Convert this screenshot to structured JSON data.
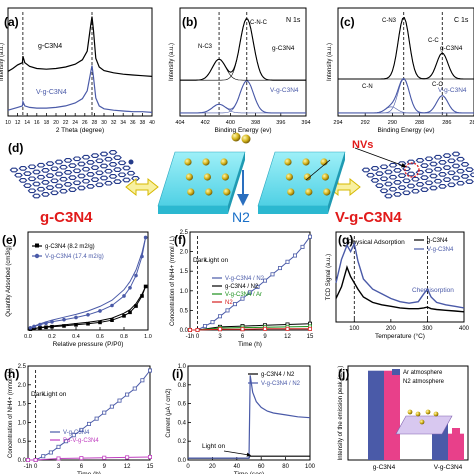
{
  "chart_data": [
    {
      "panel": "(a)",
      "type": "line",
      "xlabel": "2 Theta (degree)",
      "ylabel": "Intensity (a.u.)",
      "xlim": [
        10,
        40
      ],
      "xticks": [
        "10",
        "12",
        "14",
        "16",
        "18",
        "20",
        "22",
        "24",
        "26",
        "28",
        "30",
        "32",
        "34",
        "36",
        "38",
        "40"
      ],
      "series": [
        {
          "name": "g-C3N4",
          "color": "#000000",
          "x": [
            10,
            11,
            12,
            13,
            13.1,
            13.5,
            14.5,
            16,
            18,
            20,
            22,
            24,
            25.5,
            26.5,
            27.2,
            27.5,
            27.8,
            28.3,
            29,
            30,
            32,
            34,
            36,
            38,
            40
          ],
          "y": [
            0.62,
            0.66,
            0.71,
            0.74,
            0.83,
            0.74,
            0.69,
            0.66,
            0.65,
            0.66,
            0.68,
            0.72,
            0.78,
            0.9,
            1.25,
            1.38,
            1.2,
            0.8,
            0.68,
            0.63,
            0.6,
            0.58,
            0.57,
            0.56,
            0.55
          ]
        },
        {
          "name": "V-g-C3N4",
          "color": "#4a5aa8",
          "x": [
            10,
            11,
            12,
            13,
            13.1,
            13.5,
            14.5,
            16,
            18,
            20,
            22,
            24,
            25.5,
            26.5,
            27.2,
            27.5,
            27.8,
            28.3,
            29,
            30,
            32,
            34,
            36,
            38,
            40
          ],
          "y": [
            0.08,
            0.1,
            0.12,
            0.14,
            0.2,
            0.14,
            0.12,
            0.11,
            0.11,
            0.12,
            0.14,
            0.18,
            0.24,
            0.35,
            0.6,
            0.7,
            0.55,
            0.25,
            0.14,
            0.1,
            0.08,
            0.07,
            0.06,
            0.06,
            0.05
          ]
        }
      ],
      "ref_x": [
        13.1,
        27.5
      ]
    },
    {
      "panel": "(b)",
      "title": "N 1s",
      "type": "line",
      "xlabel": "Binding Energy (ev)",
      "ylabel": "Intensity (a.u.)",
      "xlim": [
        404,
        394
      ],
      "xticks": [
        "404",
        "402",
        "400",
        "398",
        "396",
        "394"
      ],
      "peak_labels": [
        "C-N-C",
        "N-C3"
      ],
      "series": [
        {
          "name": "g-C3N4",
          "color": "#000000",
          "centers": [
            398.7,
            400.9
          ],
          "heights": [
            1.0,
            0.34
          ],
          "width": 0.75,
          "offset": 0.58
        },
        {
          "name": "V-g-C3N4",
          "color": "#4a5aa8",
          "centers": [
            398.7,
            400.9
          ],
          "heights": [
            0.52,
            0.14
          ],
          "width": 0.75,
          "offset": 0.05
        }
      ],
      "ref_x": [
        400.9,
        398.7
      ]
    },
    {
      "panel": "(c)",
      "title": "C 1s",
      "type": "line",
      "xlabel": "Binding Energy (ev)",
      "ylabel": "Intensity (a.u.)",
      "xlim": [
        294,
        282
      ],
      "xticks": [
        "294",
        "292",
        "290",
        "288",
        "286",
        "284"
      ],
      "peak_labels": [
        "C-N3",
        "C-C",
        "C-N",
        "C-C"
      ],
      "series": [
        {
          "name": "g-C3N4",
          "color": "#000000",
          "centers": [
            288.2,
            284.8
          ],
          "heights": [
            1.0,
            0.42
          ],
          "width": 0.7,
          "offset": 0.6
        },
        {
          "name": "V-g-C3N4",
          "color": "#4a5aa8",
          "centers": [
            288.2,
            284.8,
            289.3
          ],
          "heights": [
            0.55,
            0.28,
            0.1
          ],
          "width": 0.7,
          "offset": 0.05
        }
      ],
      "ref_x": [
        288.2,
        284.8
      ]
    },
    {
      "panel": "(e)",
      "type": "line",
      "xlabel": "Relative pressure (P/P0)",
      "ylabel": "Quantity Adsorbed (cm3/g)",
      "xlim": [
        0,
        1.0
      ],
      "xticks": [
        "0.0",
        "0.2",
        "0.4",
        "0.6",
        "0.8",
        "1.0"
      ],
      "series": [
        {
          "name": "g-C3N4 (8.2 m2/g)",
          "color": "#000000",
          "marker": "square",
          "x": [
            0.02,
            0.05,
            0.1,
            0.15,
            0.2,
            0.3,
            0.4,
            0.5,
            0.6,
            0.7,
            0.8,
            0.85,
            0.9,
            0.95,
            0.98
          ],
          "y": [
            0.3,
            0.5,
            0.8,
            1.0,
            1.2,
            1.5,
            1.9,
            2.3,
            2.8,
            3.6,
            5.2,
            6.5,
            8.8,
            12.5,
            16
          ]
        },
        {
          "name": "V-g-C3N4 (17.4 m2/g)",
          "color": "#4a5aa8",
          "marker": "circle",
          "x": [
            0.02,
            0.05,
            0.1,
            0.15,
            0.2,
            0.3,
            0.4,
            0.5,
            0.6,
            0.7,
            0.8,
            0.85,
            0.9,
            0.95,
            0.98
          ],
          "y": [
            0.8,
            1.3,
            2.0,
            2.5,
            3.0,
            3.8,
            4.6,
            5.6,
            7.0,
            9.0,
            12.5,
            15.5,
            20,
            27,
            34
          ]
        }
      ]
    },
    {
      "panel": "(f)",
      "type": "line",
      "xlabel": "Time (h)",
      "ylabel": "Concentration of NH4+ (mmol / L)",
      "xlim": [
        -1,
        15
      ],
      "ylim": [
        0,
        2.5
      ],
      "xticks": [
        "-1h",
        "0",
        "3",
        "6",
        "9",
        "12",
        "15"
      ],
      "yticks": [
        "0.0",
        "0.5",
        "1.0",
        "1.5",
        "2.0",
        "2.5"
      ],
      "annotations": [
        "Dark",
        "Light on"
      ],
      "series": [
        {
          "name": "V-g-C3N4 / N2",
          "color": "#4a5aa8",
          "x": [
            -1,
            0,
            1,
            2,
            3,
            4,
            5,
            6,
            7,
            8,
            9,
            10,
            11,
            12,
            13,
            14,
            15
          ],
          "y": [
            0,
            0,
            0.1,
            0.2,
            0.35,
            0.5,
            0.66,
            0.8,
            0.96,
            1.1,
            1.26,
            1.42,
            1.58,
            1.74,
            1.9,
            2.12,
            2.38
          ]
        },
        {
          "name": "g-C3N4 / N2",
          "color": "#000000",
          "x": [
            -1,
            0,
            3,
            6,
            9,
            12,
            15
          ],
          "y": [
            0,
            0,
            0.08,
            0.1,
            0.12,
            0.14,
            0.16
          ]
        },
        {
          "name": "V-g-C3N4 / Ar",
          "color": "#1a8f1a",
          "x": [
            -1,
            0,
            3,
            6,
            9,
            12,
            15
          ],
          "y": [
            0,
            0,
            0.05,
            0.06,
            0.07,
            0.08,
            0.09
          ]
        },
        {
          "name": "N2",
          "color": "#d62020",
          "x": [
            -1,
            0,
            3,
            6,
            9,
            12,
            15
          ],
          "y": [
            0,
            0,
            0.02,
            0.02,
            0.03,
            0.03,
            0.03
          ]
        }
      ]
    },
    {
      "panel": "(g)",
      "type": "line",
      "xlabel": "Temperature (°C)",
      "ylabel": "TCD Signal (a.u.)",
      "xlim": [
        50,
        400
      ],
      "xticks": [
        "100",
        "200",
        "300",
        "400"
      ],
      "annotations": [
        "Physical Adsorption",
        "Chemisorption"
      ],
      "series": [
        {
          "name": "g-C3N4",
          "color": "#000000",
          "x": [
            50,
            65,
            80,
            90,
            100,
            110,
            125,
            150,
            175,
            200,
            225,
            250,
            275,
            290,
            300,
            310,
            325,
            350,
            375,
            400
          ],
          "y": [
            0.3,
            0.45,
            0.7,
            0.58,
            0.5,
            0.42,
            0.32,
            0.25,
            0.22,
            0.2,
            0.18,
            0.17,
            0.17,
            0.18,
            0.19,
            0.17,
            0.16,
            0.15,
            0.14,
            0.13
          ]
        },
        {
          "name": "V-g-C3N4",
          "color": "#4a5aa8",
          "x": [
            50,
            65,
            80,
            90,
            100,
            110,
            125,
            150,
            175,
            200,
            225,
            250,
            275,
            290,
            300,
            310,
            325,
            350,
            375,
            400
          ],
          "y": [
            0.5,
            0.8,
            0.98,
            0.9,
            1.0,
            0.78,
            0.55,
            0.42,
            0.36,
            0.3,
            0.26,
            0.24,
            0.26,
            0.36,
            0.42,
            0.32,
            0.25,
            0.22,
            0.2,
            0.18
          ]
        }
      ],
      "ref_x": [
        100,
        300
      ]
    },
    {
      "panel": "(h)",
      "type": "line",
      "xlabel": "Time (h)",
      "ylabel": "Concentration of NH4+ (mmol / L)",
      "xlim": [
        -1,
        15
      ],
      "ylim": [
        0,
        2.5
      ],
      "xticks": [
        "-1h",
        "0",
        "3",
        "6",
        "9",
        "12",
        "15"
      ],
      "yticks": [
        "0.0",
        "0.5",
        "1.0",
        "1.5",
        "2.0",
        "2.5"
      ],
      "annotations": [
        "Dark",
        "Light on"
      ],
      "series": [
        {
          "name": "V-g-C3N4",
          "color": "#4a5aa8",
          "x": [
            -1,
            0,
            1,
            2,
            3,
            4,
            5,
            6,
            7,
            8,
            9,
            10,
            11,
            12,
            13,
            14,
            15
          ],
          "y": [
            0,
            0,
            0.1,
            0.2,
            0.35,
            0.5,
            0.66,
            0.8,
            0.96,
            1.1,
            1.26,
            1.42,
            1.58,
            1.74,
            1.9,
            2.12,
            2.38
          ]
        },
        {
          "name": "Pd-V-g-C3N4",
          "color": "#c040c0",
          "x": [
            -1,
            0,
            3,
            6,
            9,
            12,
            15
          ],
          "y": [
            0,
            0,
            0.04,
            0.05,
            0.06,
            0.07,
            0.08
          ]
        }
      ]
    },
    {
      "panel": "(i)",
      "type": "line",
      "xlabel": "Time (sec)",
      "ylabel": "Current (μA / cm2)",
      "xlim": [
        0,
        100
      ],
      "ylim": [
        0,
        1.0
      ],
      "xticks": [
        "0",
        "20",
        "40",
        "60",
        "80",
        "100"
      ],
      "yticks": [
        "0.0",
        "0.2",
        "0.4",
        "0.6",
        "0.8",
        "1.0"
      ],
      "annotations": [
        "Light on"
      ],
      "series": [
        {
          "name": "g-C3N4 / N2",
          "color": "#000000",
          "x": [
            0,
            50,
            50.5,
            100
          ],
          "y": [
            0.02,
            0.02,
            0.04,
            0.04
          ]
        },
        {
          "name": "V-g-C3N4 / N2",
          "color": "#4a5aa8",
          "x": [
            0,
            50,
            51,
            53,
            56,
            60,
            65,
            70,
            80,
            90,
            100
          ],
          "y": [
            0.02,
            0.02,
            0.9,
            0.72,
            0.62,
            0.56,
            0.52,
            0.5,
            0.48,
            0.46,
            0.45
          ]
        }
      ]
    },
    {
      "panel": "(j)",
      "type": "bar",
      "ylabel": "Intensity of the emission peak (a.u.)",
      "categories": [
        "g-C3N4",
        "V-g-C3N4"
      ],
      "series": [
        {
          "name": "Ar atmosphere",
          "color": "#4a5aa8",
          "values": [
            0.95,
            0.42
          ]
        },
        {
          "name": "N2 atmosphere",
          "color": "#e8408a",
          "values": [
            0.95,
            0.28
          ]
        }
      ]
    }
  ],
  "diagram": {
    "panel": "(d)",
    "left_label": "g-C3N4",
    "right_label": "V-g-C3N4",
    "gas_label": "N2",
    "vacancy_label": "NVs",
    "left_color": "#e11a1a",
    "right_color": "#e11a1a",
    "gas_color": "#1a70c8"
  }
}
